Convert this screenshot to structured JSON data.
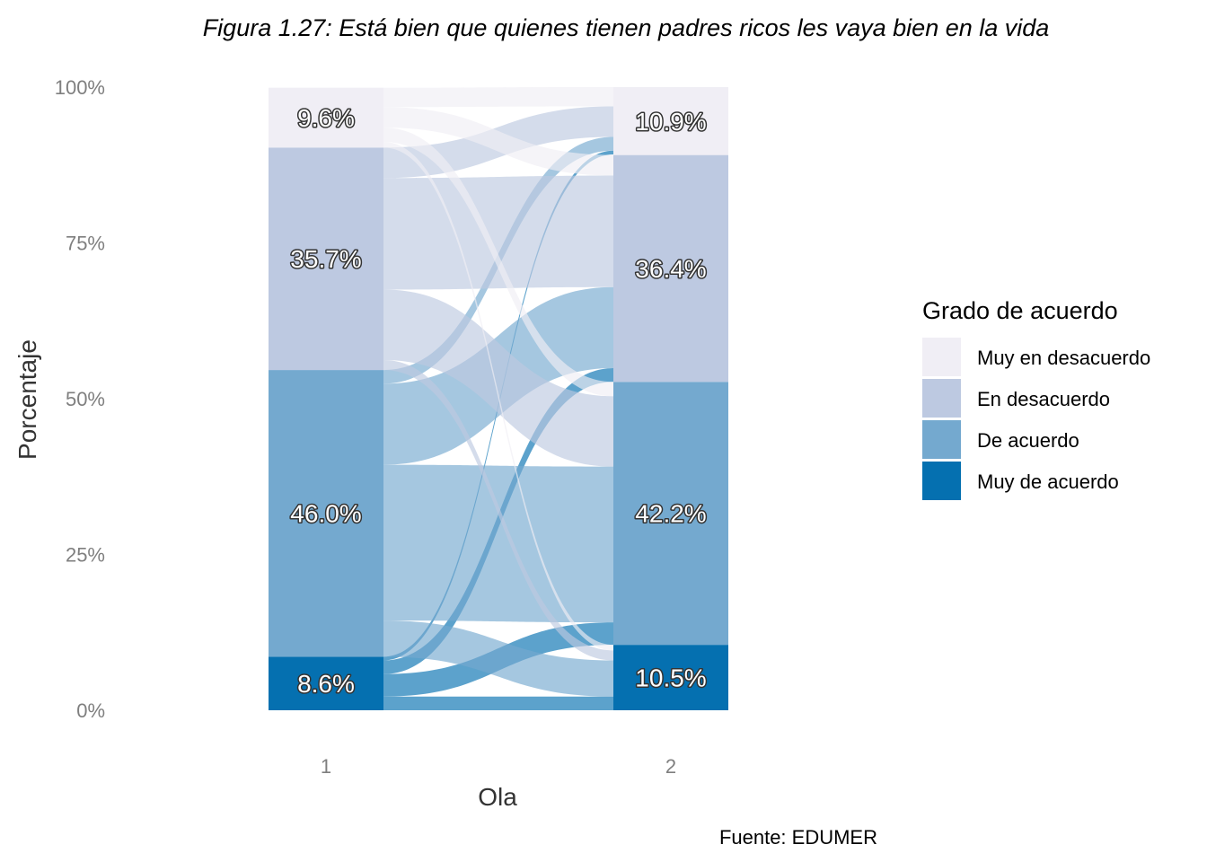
{
  "chart_data": {
    "type": "alluvial",
    "title": "Figura 1.27: Está bien que quienes tienen padres ricos les vaya bien en la vida",
    "xlabel": "Ola",
    "ylabel": "Porcentaje",
    "caption": "Fuente: EDUMER",
    "ylim": [
      0,
      100
    ],
    "yticks": [
      "0%",
      "25%",
      "50%",
      "75%",
      "100%"
    ],
    "ytick_values": [
      0,
      25,
      50,
      75,
      100
    ],
    "categories": [
      "1",
      "2"
    ],
    "legend": {
      "title": "Grado de acuerdo",
      "position": "right",
      "items": [
        {
          "name": "Muy en desacuerdo",
          "color": "#f0eef5"
        },
        {
          "name": "En desacuerdo",
          "color": "#bdc9e1"
        },
        {
          "name": "De acuerdo",
          "color": "#74a9cf"
        },
        {
          "name": "Muy de acuerdo",
          "color": "#0570b0"
        }
      ]
    },
    "series": [
      {
        "name": "Muy de acuerdo",
        "values": [
          8.6,
          10.5
        ],
        "labels": [
          "8.6%",
          "10.5%"
        ]
      },
      {
        "name": "De acuerdo",
        "values": [
          46.0,
          42.2
        ],
        "labels": [
          "46.0%",
          "42.2%"
        ]
      },
      {
        "name": "En desacuerdo",
        "values": [
          35.7,
          36.4
        ],
        "labels": [
          "35.7%",
          "36.4%"
        ]
      },
      {
        "name": "Muy en desacuerdo",
        "values": [
          9.6,
          10.9
        ],
        "labels": [
          "9.6%",
          "10.9%"
        ]
      }
    ],
    "flows": [
      {
        "from": "Muy de acuerdo",
        "to": "Muy de acuerdo",
        "value": 2.2
      },
      {
        "from": "Muy de acuerdo",
        "to": "De acuerdo",
        "value": 3.6
      },
      {
        "from": "Muy de acuerdo",
        "to": "En desacuerdo",
        "value": 2.2
      },
      {
        "from": "Muy de acuerdo",
        "to": "Muy en desacuerdo",
        "value": 0.6
      },
      {
        "from": "De acuerdo",
        "to": "Muy de acuerdo",
        "value": 5.8
      },
      {
        "from": "De acuerdo",
        "to": "De acuerdo",
        "value": 25.0
      },
      {
        "from": "De acuerdo",
        "to": "En desacuerdo",
        "value": 13.0
      },
      {
        "from": "De acuerdo",
        "to": "Muy en desacuerdo",
        "value": 2.2
      },
      {
        "from": "En desacuerdo",
        "to": "Muy de acuerdo",
        "value": 1.6
      },
      {
        "from": "En desacuerdo",
        "to": "De acuerdo",
        "value": 11.3
      },
      {
        "from": "En desacuerdo",
        "to": "En desacuerdo",
        "value": 17.9
      },
      {
        "from": "En desacuerdo",
        "to": "Muy en desacuerdo",
        "value": 4.9
      },
      {
        "from": "Muy en desacuerdo",
        "to": "Muy de acuerdo",
        "value": 0.9
      },
      {
        "from": "Muy en desacuerdo",
        "to": "De acuerdo",
        "value": 2.3
      },
      {
        "from": "Muy en desacuerdo",
        "to": "En desacuerdo",
        "value": 3.3
      },
      {
        "from": "Muy en desacuerdo",
        "to": "Muy en desacuerdo",
        "value": 3.1
      }
    ]
  }
}
